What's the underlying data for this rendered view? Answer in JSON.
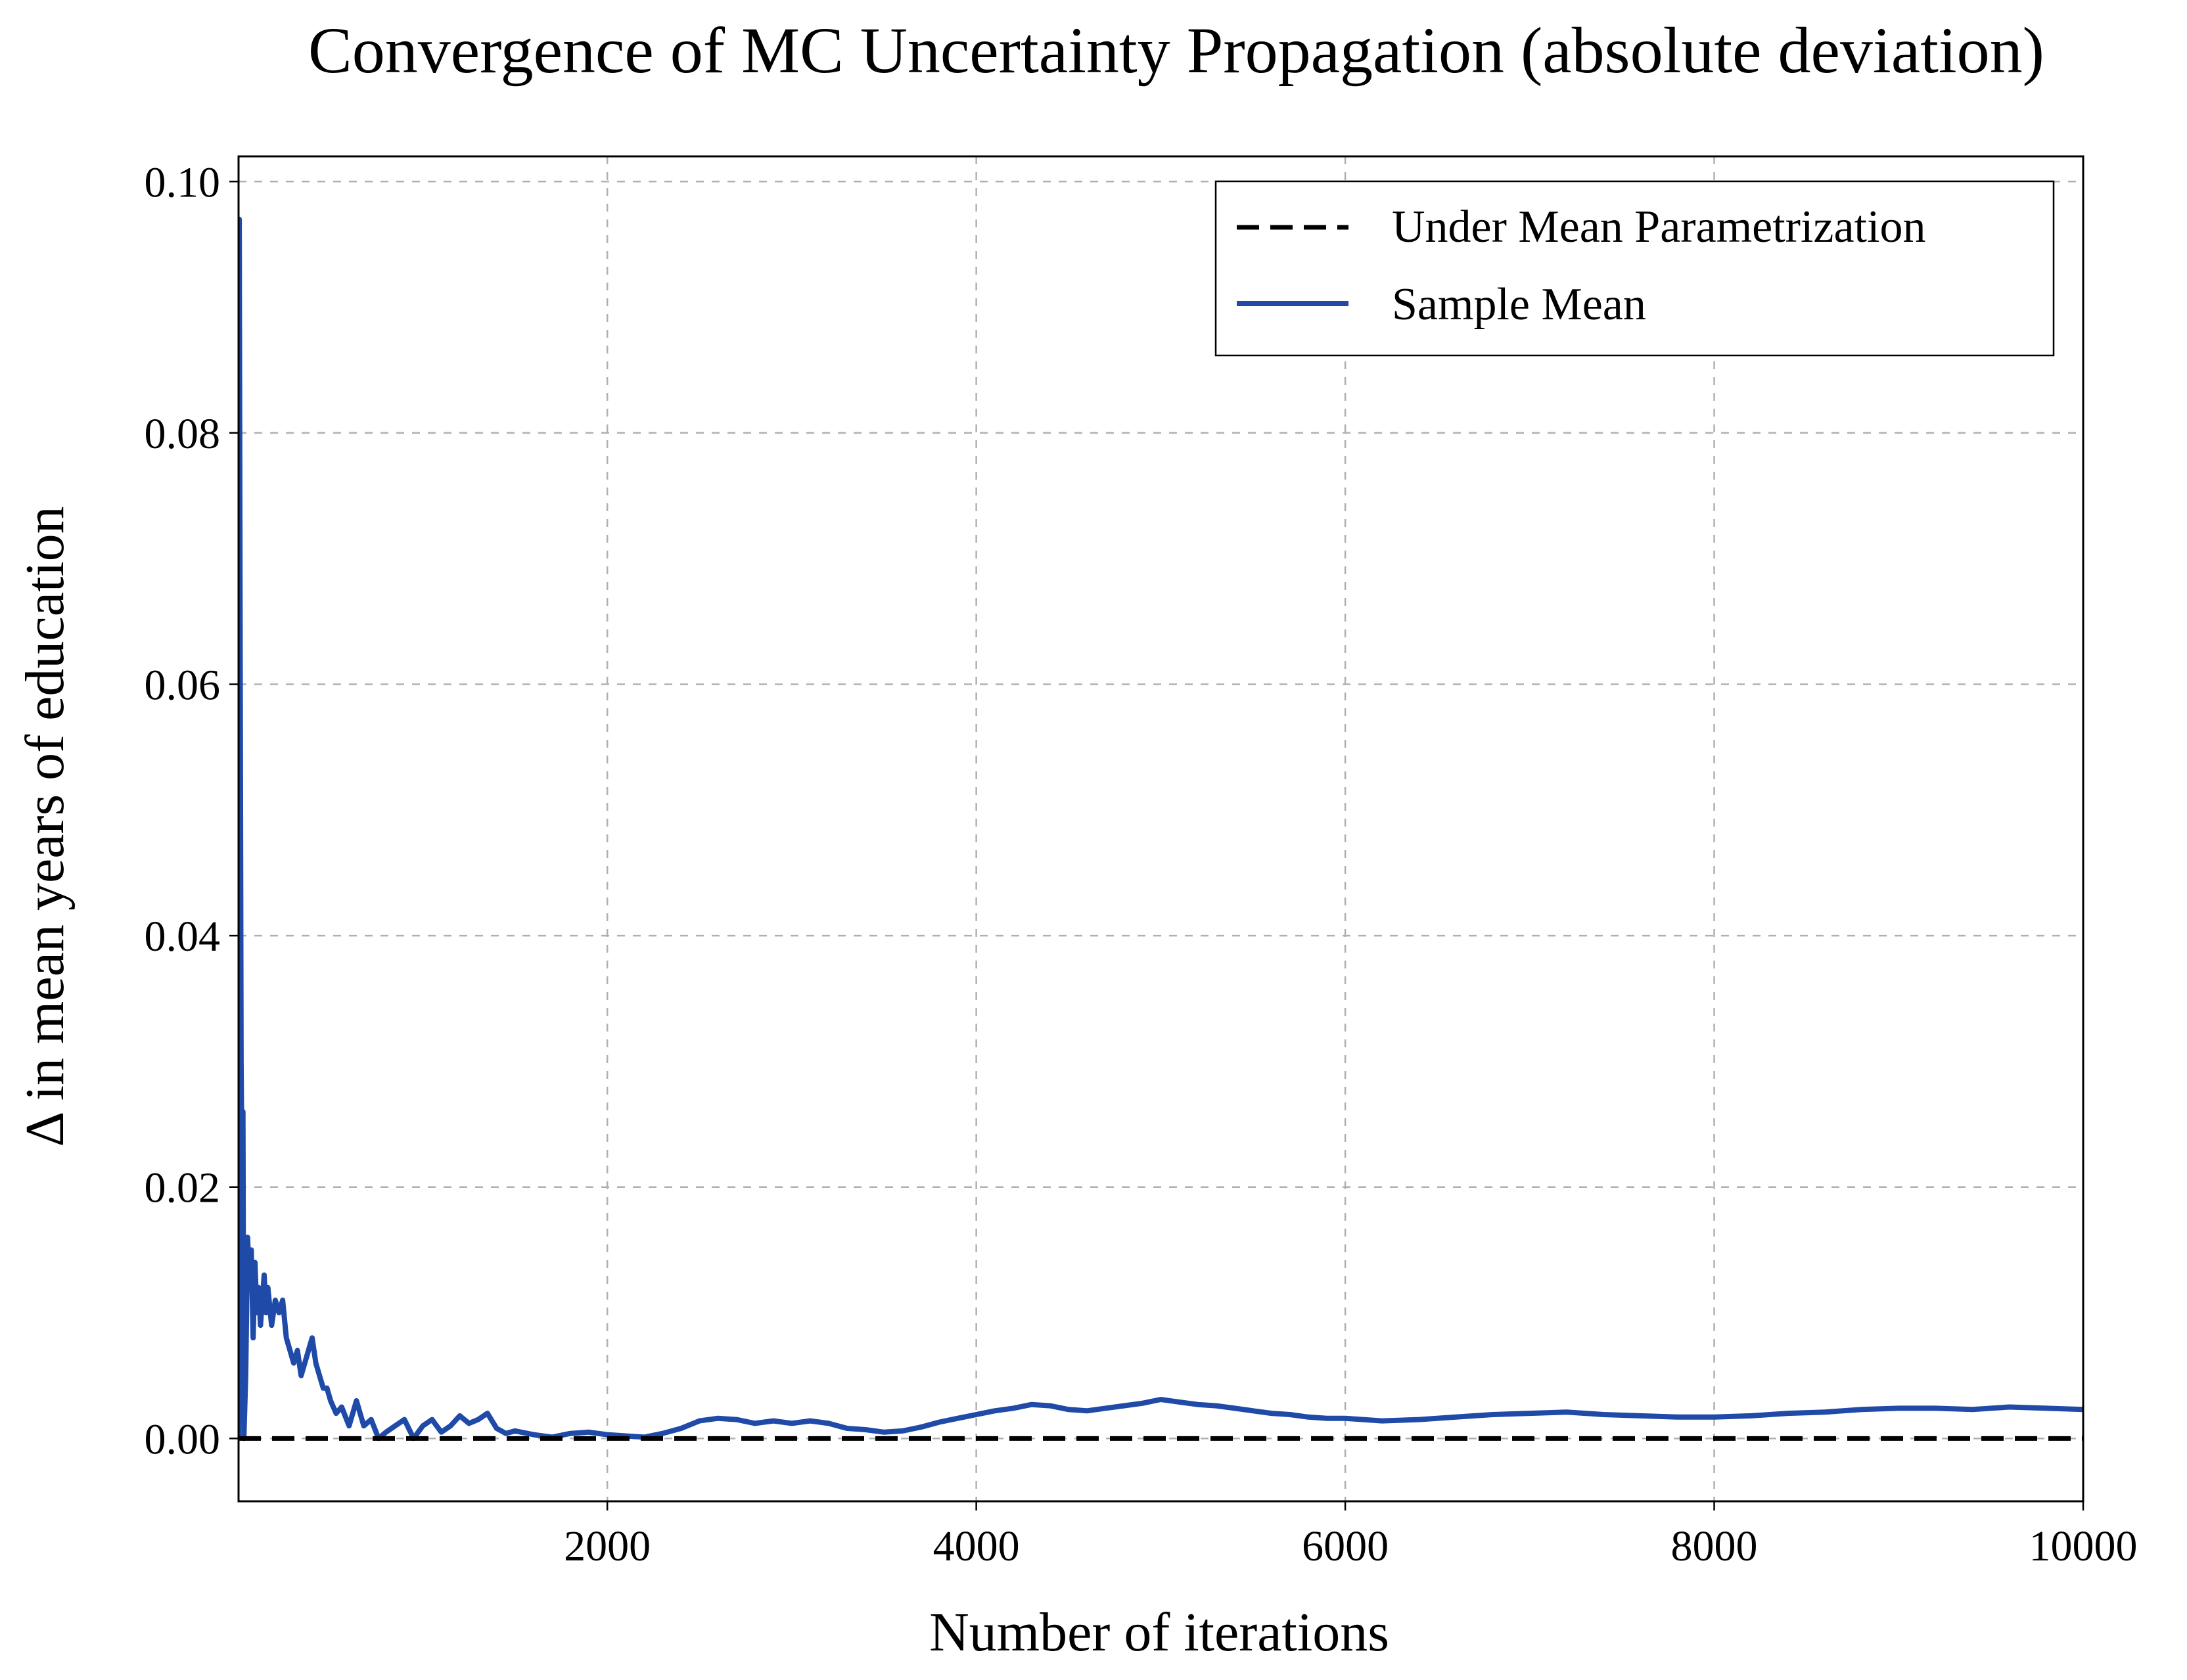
{
  "chart_data": {
    "type": "line",
    "title": "Convergence of MC Uncertainty Propagation (absolute deviation)",
    "xlabel": "Number of iterations",
    "ylabel": "Δ in mean years of education",
    "xlim": [
      1,
      10000
    ],
    "ylim": [
      -0.005,
      0.102
    ],
    "xticks": [
      2000,
      4000,
      6000,
      8000,
      10000
    ],
    "xtick_labels": [
      "2000",
      "4000",
      "6000",
      "8000",
      "10000"
    ],
    "yticks": [
      0.0,
      0.02,
      0.04,
      0.06,
      0.08,
      0.1
    ],
    "ytick_labels": [
      "0.00",
      "0.02",
      "0.04",
      "0.06",
      "0.08",
      "0.10"
    ],
    "grid": true,
    "legend_position": "top-right",
    "series": [
      {
        "name": "Under Mean Parametrization",
        "style": "dashed",
        "color": "#000000",
        "x": [
          1,
          10000
        ],
        "y": [
          0.0,
          0.0
        ]
      },
      {
        "name": "Sample Mean",
        "style": "solid",
        "color": "#1f4aa8",
        "x": [
          1,
          5,
          10,
          15,
          20,
          25,
          30,
          40,
          50,
          60,
          70,
          80,
          90,
          100,
          110,
          120,
          130,
          140,
          150,
          160,
          180,
          200,
          220,
          240,
          260,
          280,
          300,
          320,
          340,
          360,
          380,
          400,
          420,
          440,
          460,
          480,
          500,
          530,
          560,
          600,
          640,
          680,
          720,
          760,
          800,
          850,
          900,
          950,
          1000,
          1050,
          1100,
          1150,
          1200,
          1250,
          1300,
          1350,
          1400,
          1450,
          1500,
          1600,
          1700,
          1800,
          1900,
          2000,
          2100,
          2200,
          2300,
          2400,
          2500,
          2600,
          2700,
          2800,
          2900,
          3000,
          3100,
          3200,
          3300,
          3400,
          3500,
          3600,
          3700,
          3800,
          3900,
          4000,
          4100,
          4200,
          4300,
          4400,
          4500,
          4600,
          4700,
          4800,
          4900,
          5000,
          5100,
          5200,
          5300,
          5400,
          5500,
          5600,
          5700,
          5800,
          5900,
          6000,
          6200,
          6400,
          6600,
          6800,
          7000,
          7200,
          7400,
          7600,
          7800,
          8000,
          8200,
          8400,
          8600,
          8800,
          9000,
          9200,
          9400,
          9600,
          9800,
          10000
        ],
        "y": [
          0.0,
          0.097,
          0.062,
          0.03,
          0.021,
          0.026,
          0.0,
          0.005,
          0.016,
          0.012,
          0.015,
          0.008,
          0.014,
          0.01,
          0.012,
          0.009,
          0.011,
          0.013,
          0.01,
          0.012,
          0.009,
          0.011,
          0.01,
          0.011,
          0.008,
          0.007,
          0.006,
          0.007,
          0.005,
          0.006,
          0.007,
          0.008,
          0.006,
          0.005,
          0.004,
          0.004,
          0.003,
          0.002,
          0.0025,
          0.001,
          0.003,
          0.001,
          0.0015,
          0.0,
          0.0005,
          0.001,
          0.0015,
          0.0,
          0.001,
          0.0015,
          0.0005,
          0.001,
          0.0018,
          0.0012,
          0.0015,
          0.002,
          0.0008,
          0.0004,
          0.0006,
          0.0003,
          0.0001,
          0.0004,
          0.0005,
          0.0003,
          0.0002,
          0.0001,
          0.0004,
          0.0008,
          0.0014,
          0.0016,
          0.0015,
          0.0012,
          0.0014,
          0.0012,
          0.0014,
          0.0012,
          0.0008,
          0.0007,
          0.0005,
          0.0006,
          0.0009,
          0.0013,
          0.0016,
          0.0019,
          0.0022,
          0.0024,
          0.0027,
          0.0026,
          0.0023,
          0.0022,
          0.0024,
          0.0026,
          0.0028,
          0.0031,
          0.0029,
          0.0027,
          0.0026,
          0.0024,
          0.0022,
          0.002,
          0.0019,
          0.0017,
          0.0016,
          0.0016,
          0.0014,
          0.0015,
          0.0017,
          0.0019,
          0.002,
          0.0021,
          0.0019,
          0.0018,
          0.0017,
          0.0017,
          0.0018,
          0.002,
          0.0021,
          0.0023,
          0.0024,
          0.0024,
          0.0023,
          0.0025,
          0.0024,
          0.0023
        ]
      }
    ]
  }
}
